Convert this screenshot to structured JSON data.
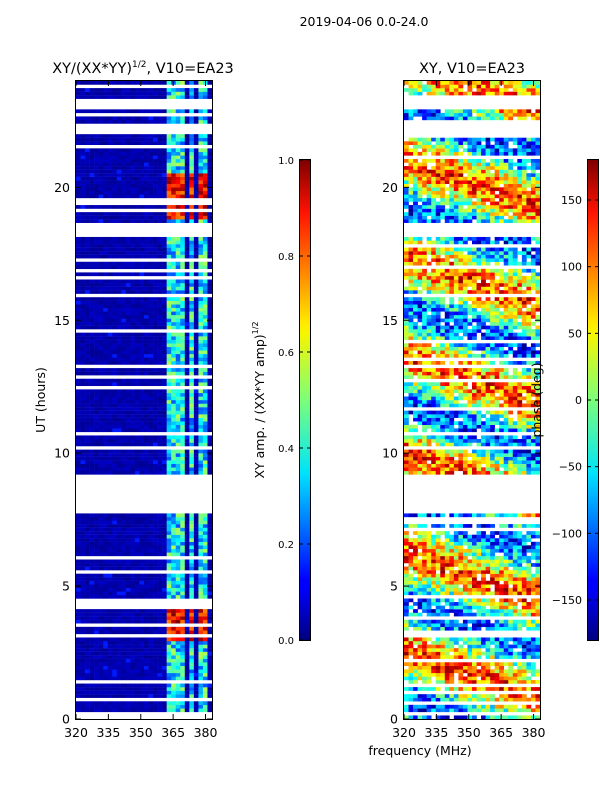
{
  "suptitle": "2019-04-06 0.0-24.0",
  "shared_xlabel": "frequency (MHz)",
  "chart_data": [
    {
      "type": "heatmap",
      "title_main": "XY/(XX*YY)",
      "title_sup": "1/2",
      "title_tail": ", V10=EA23",
      "ylabel": "UT (hours)",
      "xlim": [
        320,
        383
      ],
      "ylim": [
        0,
        24
      ],
      "xticks": [
        320,
        335,
        350,
        365,
        380
      ],
      "yticks": [
        0,
        5,
        10,
        15,
        20
      ],
      "colorbar": {
        "label_main": "XY amp. / (XX*YY amp)",
        "label_sup": "1/2",
        "range": [
          0.0,
          1.0
        ],
        "ticks": [
          "0.0",
          "0.2",
          "0.4",
          "0.6",
          "0.8",
          "1.0"
        ],
        "tick_values": [
          0.0,
          0.2,
          0.4,
          0.6,
          0.8,
          1.0
        ]
      },
      "no_data_ranges_hours": [
        [
          7.7,
          9.2
        ],
        [
          18.2,
          18.7
        ],
        [
          22.0,
          22.4
        ],
        [
          23.0,
          23.3
        ]
      ],
      "active_frequency_bands_mhz": [
        [
          363,
          366
        ],
        [
          367,
          370
        ],
        [
          372,
          375
        ],
        [
          377,
          381
        ]
      ],
      "high_value_ut_ranges_hours": [
        [
          18.8,
          20.5
        ],
        [
          3.0,
          4.3
        ]
      ]
    },
    {
      "type": "heatmap",
      "title_main": "XY, V10=EA23",
      "ylabel": "",
      "xlim": [
        320,
        383
      ],
      "ylim": [
        0,
        24
      ],
      "xticks": [
        320,
        335,
        350,
        365,
        380
      ],
      "yticks": [
        0,
        5,
        10,
        15,
        20
      ],
      "colorbar": {
        "label_main": "phase (deg)",
        "range": [
          -180,
          180
        ],
        "ticks": [
          "−150",
          "−100",
          "−50",
          "0",
          "50",
          "100",
          "150"
        ],
        "tick_values": [
          -150,
          -100,
          -50,
          0,
          50,
          100,
          150
        ]
      },
      "no_data_ranges_hours": [
        [
          7.7,
          9.2
        ],
        [
          18.2,
          18.7
        ],
        [
          22.0,
          22.4
        ],
        [
          23.0,
          23.3
        ]
      ]
    }
  ]
}
